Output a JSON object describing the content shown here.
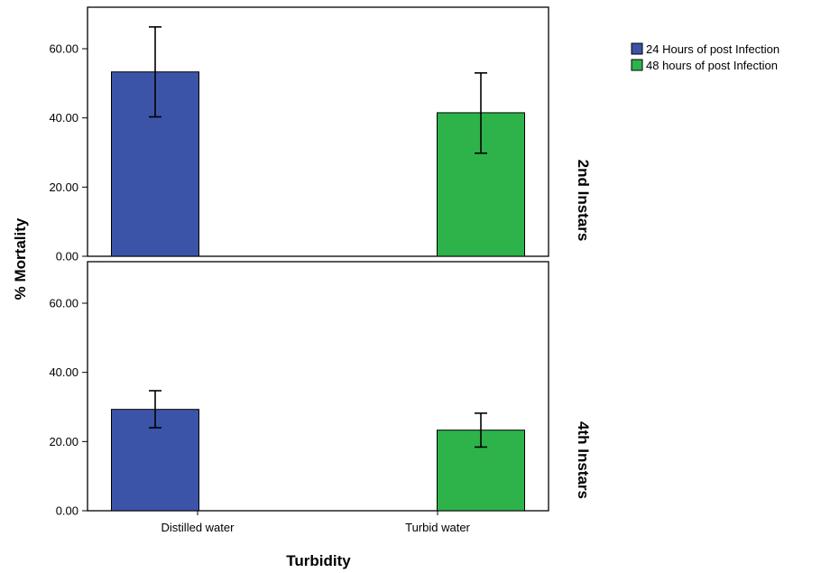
{
  "chart_data": {
    "type": "bar",
    "xlabel": "Turbidity",
    "ylabel": "% Mortality",
    "categories": [
      "Distilled water",
      "Turbid water"
    ],
    "ylim": [
      0,
      72
    ],
    "yticks": [
      0,
      20,
      40,
      60
    ],
    "ytick_labels": [
      "0.00",
      "20.00",
      "40.00",
      "60.00"
    ],
    "grid": false,
    "legend_position": "top-right",
    "series": [
      {
        "name": "24 Hours of post Infection",
        "color": "#3c54a8"
      },
      {
        "name": "48 hours of post Infection",
        "color": "#2db34a"
      }
    ],
    "panels": [
      {
        "label": "2nd Instars",
        "bars": [
          {
            "category": "Distilled water",
            "series": 0,
            "value": 53.3,
            "err_low": 40.3,
            "err_high": 66.3
          },
          {
            "category": "Turbid water",
            "series": 1,
            "value": 41.5,
            "err_low": 29.8,
            "err_high": 53.0
          }
        ]
      },
      {
        "label": "4th Instars",
        "bars": [
          {
            "category": "Distilled water",
            "series": 0,
            "value": 29.3,
            "err_low": 24.0,
            "err_high": 34.7
          },
          {
            "category": "Turbid water",
            "series": 1,
            "value": 23.3,
            "err_low": 18.4,
            "err_high": 28.2
          }
        ]
      }
    ]
  }
}
